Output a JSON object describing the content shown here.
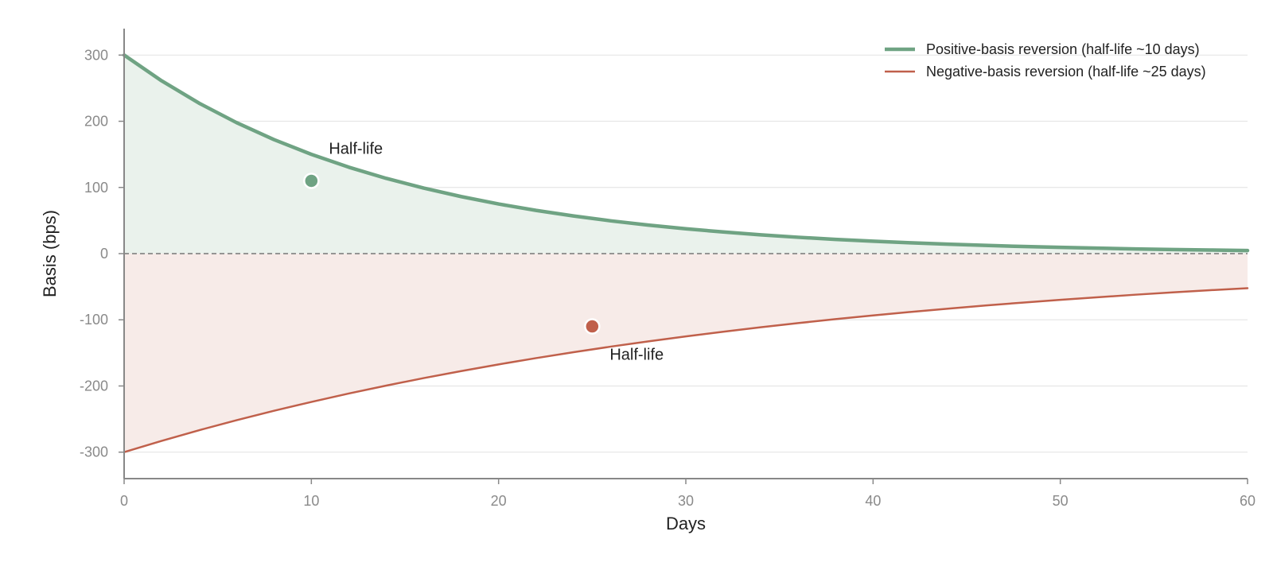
{
  "chart_data": {
    "type": "line",
    "title": "",
    "xlabel": "Days",
    "ylabel": "Basis (bps)",
    "xlim": [
      0,
      60
    ],
    "ylim": [
      -340,
      340
    ],
    "x_ticks": [
      0,
      10,
      20,
      30,
      40,
      50,
      60
    ],
    "y_ticks": [
      -300,
      -200,
      -100,
      0,
      100,
      200,
      300
    ],
    "grid": "horizontal",
    "zero_line": "dashed",
    "legend_position": "top-right",
    "series": [
      {
        "name": "Positive-basis reversion (half-life ~10 days)",
        "color": "#6fa383",
        "fill": "#eaf2ec",
        "x": [
          0,
          2,
          4,
          6,
          8,
          10,
          12,
          14,
          16,
          18,
          20,
          22,
          24,
          26,
          28,
          30,
          32,
          34,
          36,
          38,
          40,
          42,
          44,
          46,
          48,
          50,
          52,
          54,
          56,
          58,
          60
        ],
        "y": [
          300,
          261.2,
          227.4,
          198.0,
          172.3,
          150.0,
          130.6,
          113.7,
          99.0,
          86.2,
          75.0,
          65.3,
          56.9,
          49.5,
          43.1,
          37.5,
          32.7,
          28.4,
          24.7,
          21.5,
          18.8,
          16.3,
          14.2,
          12.4,
          10.8,
          9.4,
          8.2,
          7.1,
          6.2,
          5.4,
          4.7
        ],
        "marker": {
          "x": 10,
          "y": 110,
          "label": "Half-life"
        }
      },
      {
        "name": "Negative-basis reversion (half-life ~25 days)",
        "color": "#c0604b",
        "fill": "#f7ebe8",
        "x": [
          0,
          2,
          4,
          6,
          8,
          10,
          12,
          14,
          16,
          18,
          20,
          22,
          24,
          26,
          28,
          30,
          32,
          34,
          36,
          38,
          40,
          42,
          44,
          46,
          48,
          50,
          52,
          54,
          56,
          58,
          60
        ],
        "y": [
          -300,
          -283.0,
          -266.9,
          -251.8,
          -237.5,
          -224.1,
          -211.4,
          -199.4,
          -188.1,
          -177.5,
          -167.4,
          -157.9,
          -149.0,
          -140.5,
          -132.6,
          -125.1,
          -118.0,
          -111.3,
          -105.0,
          -99.0,
          -93.4,
          -88.1,
          -83.2,
          -78.4,
          -74.0,
          -69.8,
          -65.9,
          -62.1,
          -58.6,
          -55.3,
          -52.2
        ],
        "marker": {
          "x": 25,
          "y": -110,
          "label": "Half-life"
        }
      }
    ]
  }
}
